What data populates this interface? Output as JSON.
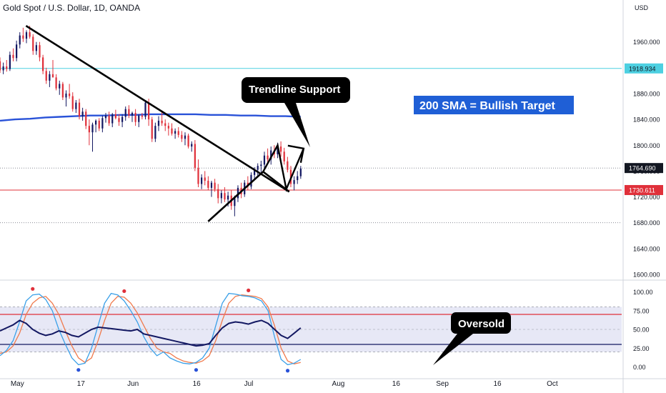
{
  "title": "Gold Spot / U.S. Dollar, 1D, OANDA",
  "currency": "USD",
  "colors": {
    "up": "#131862",
    "down": "#e0303a",
    "sma": "#2952d8",
    "level_high": "#4dd0e1",
    "level_low": "#e0303a",
    "stoch_k": "#3aa0e8",
    "stoch_d": "#f07a4c",
    "rsi": "#131862",
    "band_fill": "#e7e8f6"
  },
  "chart_data": [
    {
      "type": "candlestick",
      "name": "price",
      "ylim": [
        1600,
        2005
      ],
      "y_ticks": [
        1600,
        1640,
        1680,
        1720,
        1760,
        1800,
        1840,
        1880,
        1920,
        1960
      ],
      "y_tick_labels": [
        "1600.000",
        "1640.000",
        "1680.000",
        "1720.000",
        "1760.000",
        "1800.000",
        "1840.000",
        "1880.000",
        "1920.000",
        "1960.000"
      ],
      "x_labels": [
        "May",
        "17",
        "Jun",
        "16",
        "Jul",
        "Aug",
        "16",
        "Sep",
        "16",
        "Oct"
      ],
      "x_label_positions": [
        6,
        28,
        46,
        68,
        86,
        117,
        137,
        153,
        172,
        191
      ],
      "x_range": [
        0,
        215
      ],
      "candles": [
        [
          1930,
          1936,
          1912,
          1916
        ],
        [
          1916,
          1928,
          1910,
          1922
        ],
        [
          1922,
          1932,
          1914,
          1918
        ],
        [
          1918,
          1945,
          1915,
          1940
        ],
        [
          1940,
          1950,
          1930,
          1935
        ],
        [
          1935,
          1962,
          1930,
          1956
        ],
        [
          1956,
          1975,
          1950,
          1970
        ],
        [
          1970,
          1982,
          1960,
          1965
        ],
        [
          1965,
          1978,
          1958,
          1975
        ],
        [
          1975,
          1985,
          1965,
          1968
        ],
        [
          1968,
          1972,
          1940,
          1946
        ],
        [
          1946,
          1960,
          1940,
          1955
        ],
        [
          1955,
          1960,
          1930,
          1936
        ],
        [
          1936,
          1940,
          1910,
          1915
        ],
        [
          1915,
          1920,
          1895,
          1900
        ],
        [
          1900,
          1915,
          1890,
          1910
        ],
        [
          1910,
          1932,
          1905,
          1905
        ],
        [
          1905,
          1910,
          1885,
          1888
        ],
        [
          1888,
          1900,
          1878,
          1895
        ],
        [
          1895,
          1898,
          1870,
          1874
        ],
        [
          1874,
          1885,
          1860,
          1880
        ],
        [
          1880,
          1895,
          1872,
          1876
        ],
        [
          1876,
          1882,
          1852,
          1856
        ],
        [
          1856,
          1870,
          1850,
          1866
        ],
        [
          1866,
          1872,
          1840,
          1845
        ],
        [
          1845,
          1858,
          1838,
          1852
        ],
        [
          1852,
          1856,
          1825,
          1830
        ],
        [
          1830,
          1840,
          1800,
          1820
        ],
        [
          1820,
          1835,
          1790,
          1832
        ],
        [
          1832,
          1840,
          1820,
          1838
        ],
        [
          1838,
          1842,
          1822,
          1826
        ],
        [
          1826,
          1846,
          1820,
          1842
        ],
        [
          1842,
          1850,
          1835,
          1846
        ],
        [
          1846,
          1852,
          1830,
          1834
        ],
        [
          1834,
          1850,
          1828,
          1848
        ],
        [
          1848,
          1855,
          1840,
          1842
        ],
        [
          1842,
          1848,
          1830,
          1836
        ],
        [
          1836,
          1848,
          1828,
          1844
        ],
        [
          1844,
          1860,
          1838,
          1856
        ],
        [
          1856,
          1862,
          1842,
          1846
        ],
        [
          1846,
          1852,
          1836,
          1850
        ],
        [
          1850,
          1856,
          1830,
          1836
        ],
        [
          1836,
          1848,
          1828,
          1846
        ],
        [
          1846,
          1850,
          1840,
          1844
        ],
        [
          1844,
          1870,
          1840,
          1866
        ],
        [
          1866,
          1872,
          1830,
          1840
        ],
        [
          1840,
          1844,
          1805,
          1810
        ],
        [
          1810,
          1835,
          1805,
          1830
        ],
        [
          1830,
          1845,
          1822,
          1838
        ],
        [
          1838,
          1852,
          1830,
          1834
        ],
        [
          1834,
          1840,
          1822,
          1830
        ],
        [
          1830,
          1835,
          1815,
          1826
        ],
        [
          1826,
          1834,
          1815,
          1818
        ],
        [
          1818,
          1826,
          1810,
          1822
        ],
        [
          1822,
          1828,
          1812,
          1816
        ],
        [
          1816,
          1822,
          1805,
          1810
        ],
        [
          1810,
          1820,
          1800,
          1815
        ],
        [
          1815,
          1818,
          1795,
          1798
        ],
        [
          1798,
          1806,
          1790,
          1802
        ],
        [
          1802,
          1808,
          1760,
          1765
        ],
        [
          1765,
          1778,
          1735,
          1740
        ],
        [
          1740,
          1755,
          1732,
          1750
        ],
        [
          1750,
          1760,
          1738,
          1745
        ],
        [
          1745,
          1752,
          1730,
          1734
        ],
        [
          1734,
          1745,
          1720,
          1742
        ],
        [
          1742,
          1748,
          1728,
          1732
        ],
        [
          1732,
          1740,
          1710,
          1718
        ],
        [
          1718,
          1730,
          1710,
          1726
        ],
        [
          1726,
          1735,
          1712,
          1716
        ],
        [
          1716,
          1728,
          1705,
          1722
        ],
        [
          1722,
          1730,
          1700,
          1706
        ],
        [
          1706,
          1722,
          1690,
          1718
        ],
        [
          1718,
          1738,
          1712,
          1734
        ],
        [
          1734,
          1742,
          1718,
          1724
        ],
        [
          1724,
          1746,
          1720,
          1742
        ],
        [
          1742,
          1752,
          1730,
          1736
        ],
        [
          1736,
          1758,
          1732,
          1754
        ],
        [
          1754,
          1766,
          1748,
          1762
        ],
        [
          1762,
          1772,
          1750,
          1768
        ],
        [
          1768,
          1776,
          1758,
          1770
        ],
        [
          1770,
          1790,
          1765,
          1784
        ],
        [
          1784,
          1795,
          1772,
          1778
        ],
        [
          1778,
          1798,
          1770,
          1792
        ],
        [
          1792,
          1800,
          1780,
          1786
        ],
        [
          1786,
          1804,
          1780,
          1798
        ],
        [
          1798,
          1806,
          1782,
          1790
        ],
        [
          1790,
          1796,
          1770,
          1775
        ],
        [
          1775,
          1782,
          1758,
          1762
        ],
        [
          1762,
          1768,
          1735,
          1740
        ],
        [
          1740,
          1752,
          1730,
          1746
        ],
        [
          1746,
          1760,
          1740,
          1752
        ],
        [
          1752,
          1768,
          1748,
          1764
        ]
      ],
      "sma": [
        1838,
        1840,
        1841,
        1843,
        1844,
        1845,
        1846,
        1846,
        1847,
        1847,
        1848,
        1848,
        1848,
        1848,
        1847,
        1847,
        1846,
        1846,
        1845,
        1845,
        1844
      ],
      "levels": [
        {
          "value": 1918.934,
          "label": "1918.934",
          "color_key": "level_high"
        },
        {
          "value": 1730.611,
          "label": "1730.611",
          "color_key": "level_low"
        }
      ],
      "last_price": {
        "value": 1764.69,
        "label": "1764.690"
      },
      "dotted_levels": [
        1764.69,
        1680
      ],
      "lines": [
        {
          "points": [
            [
              9,
              1985
            ],
            [
              100,
              1728
            ]
          ],
          "width": 2.6
        },
        {
          "points": [
            [
              72,
              1682
            ],
            [
              91,
              1759
            ],
            [
              100,
              1728
            ]
          ],
          "width": 2.6
        },
        {
          "points": [
            [
              91,
              1759
            ],
            [
              96,
              1800
            ],
            [
              99,
              1732
            ],
            [
              105,
              1795
            ]
          ],
          "width": 2.4
        }
      ],
      "annotations": [
        {
          "id": "trendline",
          "text": "Trendline Support",
          "style": "dark-callout"
        },
        {
          "id": "sma_target",
          "text": "200 SMA = Bullish Target",
          "style": "blue-box"
        }
      ]
    },
    {
      "type": "line",
      "name": "oscillator",
      "ylim": [
        -10,
        110
      ],
      "y_ticks": [
        0,
        25,
        50,
        75,
        100
      ],
      "y_tick_labels": [
        "0.00",
        "25.00",
        "50.00",
        "75.00",
        "100.00"
      ],
      "band": [
        20,
        80
      ],
      "upper_line": 70,
      "lower_line": 30,
      "mid_line": 50,
      "stoch_k": [
        15,
        22,
        35,
        60,
        88,
        96,
        97,
        90,
        75,
        50,
        30,
        12,
        3,
        5,
        25,
        55,
        85,
        98,
        96,
        88,
        75,
        60,
        40,
        25,
        15,
        20,
        12,
        8,
        5,
        4,
        6,
        12,
        25,
        55,
        85,
        98,
        97,
        95,
        94,
        92,
        88,
        75,
        40,
        10,
        3,
        5,
        10
      ],
      "stoch_d": [
        18,
        20,
        28,
        45,
        70,
        85,
        92,
        94,
        85,
        70,
        48,
        28,
        12,
        6,
        12,
        35,
        62,
        85,
        94,
        93,
        85,
        72,
        55,
        38,
        25,
        20,
        18,
        12,
        8,
        6,
        5,
        8,
        15,
        35,
        62,
        85,
        94,
        96,
        95,
        94,
        91,
        80,
        55,
        25,
        8,
        4,
        6
      ],
      "rsi": [
        48,
        52,
        56,
        62,
        58,
        50,
        45,
        42,
        44,
        48,
        46,
        42,
        40,
        45,
        50,
        53,
        52,
        51,
        50,
        49,
        48,
        50,
        44,
        42,
        40,
        38,
        36,
        34,
        32,
        30,
        28,
        29,
        31,
        42,
        52,
        58,
        60,
        59,
        57,
        60,
        62,
        58,
        50,
        42,
        38,
        45,
        52
      ],
      "dots": [
        {
          "i": 5,
          "v": 104,
          "color_key": "level_low"
        },
        {
          "i": 12,
          "v": -4,
          "color_key": "sma"
        },
        {
          "i": 19,
          "v": 101,
          "color_key": "level_low"
        },
        {
          "i": 30,
          "v": -4,
          "color_key": "sma"
        },
        {
          "i": 38,
          "v": 102,
          "color_key": "level_low"
        },
        {
          "i": 44,
          "v": -5,
          "color_key": "sma"
        }
      ],
      "annotation": {
        "id": "oversold",
        "text": "Oversold",
        "style": "dark-callout"
      }
    }
  ]
}
